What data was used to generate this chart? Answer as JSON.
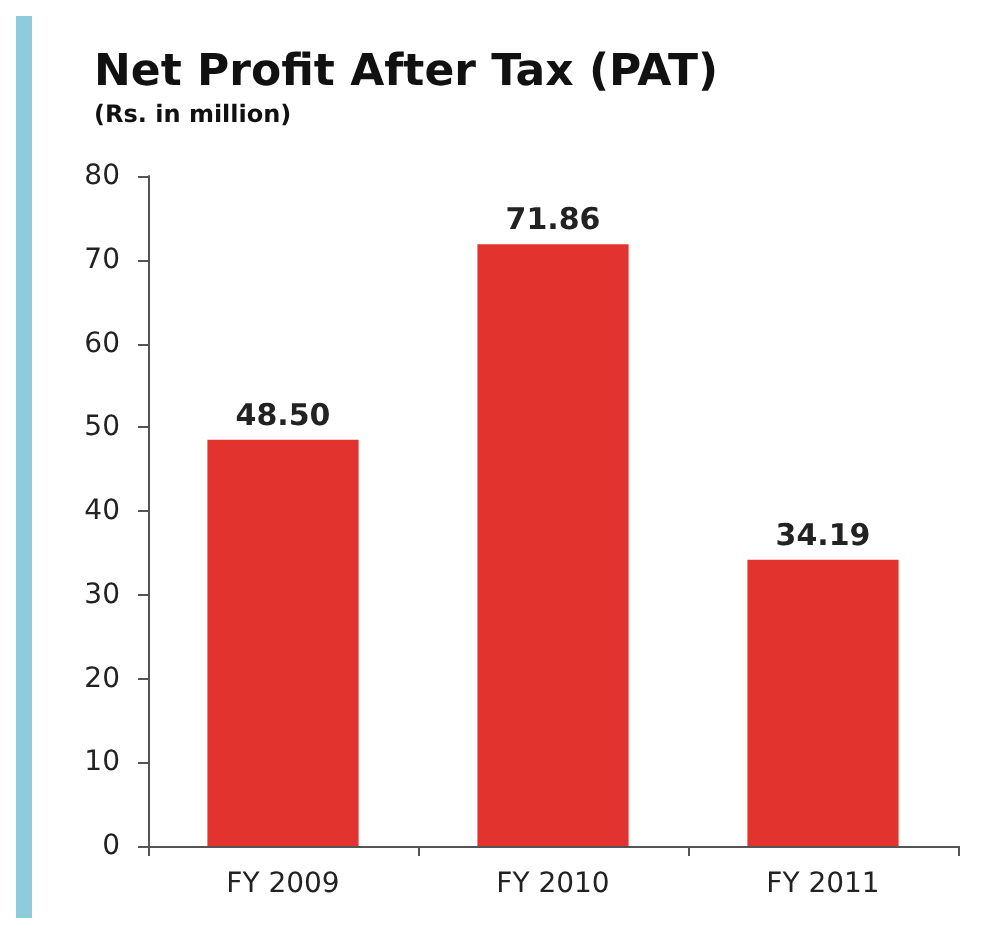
{
  "chart_data": {
    "type": "bar",
    "title": "Net Profit After Tax (PAT)",
    "subtitle": "(Rs. in million)",
    "categories": [
      "FY 2009",
      "FY 2010",
      "FY 2011"
    ],
    "values": [
      48.5,
      71.86,
      34.19
    ],
    "value_labels": [
      "48.50",
      "71.86",
      "34.19"
    ],
    "color": "#e2332f",
    "ylim": [
      0,
      80
    ],
    "yticks": [
      0,
      10,
      20,
      30,
      40,
      50,
      60,
      70,
      80
    ],
    "grid": false
  }
}
